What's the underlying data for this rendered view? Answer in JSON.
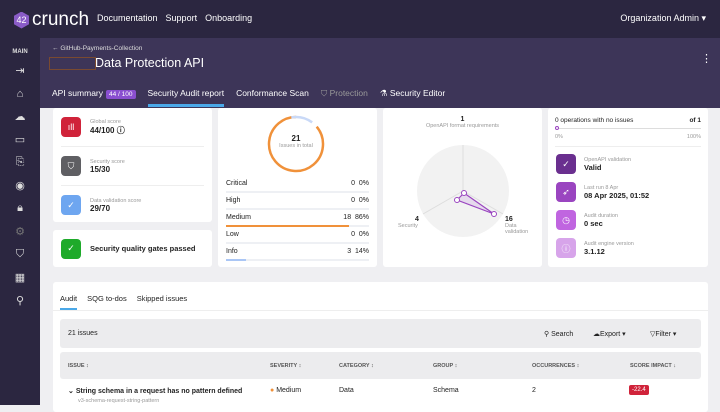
{
  "brand": "crunch",
  "topnav": [
    "Documentation",
    "Support",
    "Onboarding"
  ],
  "org": "Organization Admin",
  "sidebar": {
    "section": "MAIN",
    "icons": [
      "collapse-icon",
      "home-icon",
      "cloud-icon",
      "folder-icon",
      "import-icon",
      "eye-icon",
      "lock-icon",
      "gear-icon",
      "shield-icon",
      "building-icon",
      "search-icon"
    ]
  },
  "header": {
    "breadcrumb": "GitHub-Payments-Collection",
    "title": "Data Protection API"
  },
  "tabs": [
    {
      "label": "API summary",
      "badge": "44 / 100"
    },
    {
      "label": "Security Audit report"
    },
    {
      "label": "Conformance Scan"
    },
    {
      "label": "Protection"
    },
    {
      "label": "Security Editor"
    }
  ],
  "scores": [
    {
      "label": "Global score",
      "value": "44/100",
      "color": "#d0233a"
    },
    {
      "label": "Security score",
      "value": "15/30",
      "color": "#5f5f63"
    },
    {
      "label": "Data validation score",
      "value": "29/70",
      "color": "#6ea6f0"
    }
  ],
  "gates": "Security quality gates passed",
  "issues": {
    "total": "21",
    "total_label": "Issues in total",
    "rows": [
      {
        "label": "Critical",
        "count": "0",
        "pct": "0%",
        "frac": 0
      },
      {
        "label": "High",
        "count": "0",
        "pct": "0%",
        "frac": 0
      },
      {
        "label": "Medium",
        "count": "18",
        "pct": "86%",
        "frac": 0.86,
        "color": "#f0913a"
      },
      {
        "label": "Low",
        "count": "0",
        "pct": "0%",
        "frac": 0
      },
      {
        "label": "Info",
        "count": "3",
        "pct": "14%",
        "frac": 0.14,
        "color": "#aac6f5"
      }
    ]
  },
  "radar": {
    "top": {
      "value": "1",
      "label": "OpenAPI format requirements"
    },
    "left": {
      "value": "4",
      "label": "Security"
    },
    "right": {
      "value": "16",
      "label": "Data validation"
    }
  },
  "ops": {
    "text": "0 operations with no issues",
    "of": "of 1",
    "min": "0%",
    "max": "100%",
    "progress": 0
  },
  "meta": [
    {
      "label": "OpenAPI validation",
      "value": "Valid",
      "color": "#6a2f8f"
    },
    {
      "label": "Last run 8 Apr",
      "value": "08 Apr 2025, 01:52",
      "color": "#9a45c0"
    },
    {
      "label": "Audit duration",
      "value": "0 sec",
      "color": "#c065e0"
    },
    {
      "label": "Audit engine version",
      "value": "3.1.12",
      "color": "#d7a4ea"
    }
  ],
  "subtabs": [
    "Audit",
    "SQG to-dos",
    "Skipped issues"
  ],
  "toolbar": {
    "count": "21 issues",
    "search": "Search",
    "export": "Export",
    "filter": "Filter"
  },
  "columns": [
    "ISSUE",
    "SEVERITY",
    "CATEGORY",
    "GROUP",
    "OCCURRENCES",
    "SCORE IMPACT"
  ],
  "rows": [
    {
      "issue": "String schema in a request has no pattern defined",
      "id": "v3-schema-request-string-pattern",
      "severity": "Medium",
      "category": "Data",
      "group": "Schema",
      "occurrences": "2",
      "impact": "-22.4"
    }
  ]
}
